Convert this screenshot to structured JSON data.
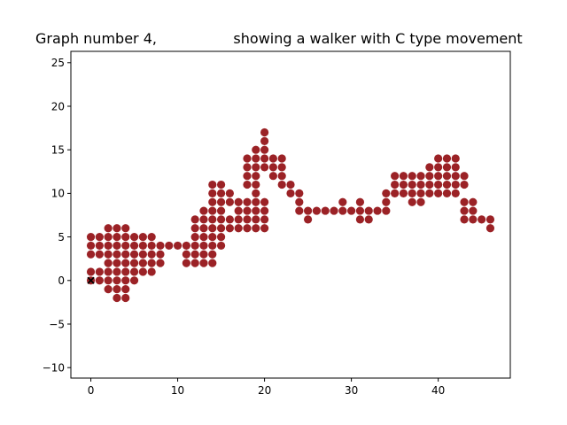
{
  "chart_data": {
    "type": "scatter",
    "title": "Graph number 4,                 showing a walker with C type movement",
    "xlim": [
      -2.3,
      48.3
    ],
    "ylim": [
      -11.2,
      26.3
    ],
    "x_ticks": [
      0,
      10,
      20,
      30,
      40
    ],
    "y_ticks": [
      -10,
      -5,
      0,
      5,
      10,
      15,
      20,
      25
    ],
    "grid": false,
    "colors": {
      "points": "#9b2226",
      "start_marker": "#000000",
      "axis": "#000000"
    },
    "start_marker": {
      "x": 0,
      "y": 0,
      "symbol": "x"
    },
    "points": [
      [
        0,
        5
      ],
      [
        0,
        4
      ],
      [
        0,
        3
      ],
      [
        0,
        1
      ],
      [
        0,
        0
      ],
      [
        1,
        5
      ],
      [
        1,
        4
      ],
      [
        1,
        3
      ],
      [
        1,
        1
      ],
      [
        1,
        0
      ],
      [
        2,
        6
      ],
      [
        2,
        5
      ],
      [
        2,
        4
      ],
      [
        2,
        3
      ],
      [
        2,
        2
      ],
      [
        2,
        1
      ],
      [
        2,
        0
      ],
      [
        2,
        -1
      ],
      [
        3,
        6
      ],
      [
        3,
        5
      ],
      [
        3,
        4
      ],
      [
        3,
        3
      ],
      [
        3,
        2
      ],
      [
        3,
        1
      ],
      [
        3,
        0
      ],
      [
        3,
        -1
      ],
      [
        3,
        -2
      ],
      [
        4,
        6
      ],
      [
        4,
        5
      ],
      [
        4,
        4
      ],
      [
        4,
        3
      ],
      [
        4,
        2
      ],
      [
        4,
        1
      ],
      [
        4,
        0
      ],
      [
        4,
        -1
      ],
      [
        4,
        -2
      ],
      [
        5,
        5
      ],
      [
        5,
        4
      ],
      [
        5,
        3
      ],
      [
        5,
        2
      ],
      [
        5,
        1
      ],
      [
        5,
        0
      ],
      [
        6,
        5
      ],
      [
        6,
        4
      ],
      [
        6,
        3
      ],
      [
        6,
        2
      ],
      [
        6,
        1
      ],
      [
        7,
        5
      ],
      [
        7,
        4
      ],
      [
        7,
        3
      ],
      [
        7,
        2
      ],
      [
        7,
        1
      ],
      [
        8,
        4
      ],
      [
        8,
        3
      ],
      [
        8,
        2
      ],
      [
        9,
        4
      ],
      [
        10,
        4
      ],
      [
        11,
        4
      ],
      [
        11,
        3
      ],
      [
        11,
        2
      ],
      [
        12,
        7
      ],
      [
        12,
        6
      ],
      [
        12,
        5
      ],
      [
        12,
        4
      ],
      [
        12,
        3
      ],
      [
        12,
        2
      ],
      [
        13,
        8
      ],
      [
        13,
        7
      ],
      [
        13,
        6
      ],
      [
        13,
        5
      ],
      [
        13,
        4
      ],
      [
        13,
        3
      ],
      [
        13,
        2
      ],
      [
        14,
        11
      ],
      [
        14,
        10
      ],
      [
        14,
        9
      ],
      [
        14,
        8
      ],
      [
        14,
        7
      ],
      [
        14,
        6
      ],
      [
        14,
        5
      ],
      [
        14,
        4
      ],
      [
        14,
        3
      ],
      [
        14,
        2
      ],
      [
        15,
        11
      ],
      [
        15,
        10
      ],
      [
        15,
        9
      ],
      [
        15,
        8
      ],
      [
        15,
        7
      ],
      [
        15,
        6
      ],
      [
        15,
        5
      ],
      [
        15,
        4
      ],
      [
        16,
        10
      ],
      [
        16,
        9
      ],
      [
        16,
        7
      ],
      [
        16,
        6
      ],
      [
        17,
        9
      ],
      [
        17,
        8
      ],
      [
        17,
        7
      ],
      [
        17,
        6
      ],
      [
        18,
        14
      ],
      [
        18,
        13
      ],
      [
        18,
        12
      ],
      [
        18,
        11
      ],
      [
        18,
        9
      ],
      [
        18,
        8
      ],
      [
        18,
        7
      ],
      [
        18,
        6
      ],
      [
        19,
        15
      ],
      [
        19,
        14
      ],
      [
        19,
        13
      ],
      [
        19,
        12
      ],
      [
        19,
        11
      ],
      [
        19,
        10
      ],
      [
        19,
        9
      ],
      [
        19,
        8
      ],
      [
        19,
        7
      ],
      [
        19,
        6
      ],
      [
        20,
        17
      ],
      [
        20,
        16
      ],
      [
        20,
        15
      ],
      [
        20,
        14
      ],
      [
        20,
        13
      ],
      [
        20,
        9
      ],
      [
        20,
        8
      ],
      [
        20,
        7
      ],
      [
        20,
        6
      ],
      [
        21,
        14
      ],
      [
        21,
        13
      ],
      [
        21,
        12
      ],
      [
        22,
        14
      ],
      [
        22,
        13
      ],
      [
        22,
        12
      ],
      [
        22,
        11
      ],
      [
        23,
        11
      ],
      [
        23,
        10
      ],
      [
        24,
        10
      ],
      [
        24,
        9
      ],
      [
        24,
        8
      ],
      [
        25,
        8
      ],
      [
        25,
        7
      ],
      [
        26,
        8
      ],
      [
        27,
        8
      ],
      [
        28,
        8
      ],
      [
        29,
        9
      ],
      [
        29,
        8
      ],
      [
        30,
        8
      ],
      [
        31,
        9
      ],
      [
        31,
        8
      ],
      [
        31,
        7
      ],
      [
        32,
        8
      ],
      [
        32,
        7
      ],
      [
        33,
        8
      ],
      [
        34,
        10
      ],
      [
        34,
        9
      ],
      [
        34,
        8
      ],
      [
        35,
        12
      ],
      [
        35,
        11
      ],
      [
        35,
        10
      ],
      [
        36,
        12
      ],
      [
        36,
        11
      ],
      [
        36,
        10
      ],
      [
        37,
        12
      ],
      [
        37,
        11
      ],
      [
        37,
        10
      ],
      [
        37,
        9
      ],
      [
        38,
        12
      ],
      [
        38,
        11
      ],
      [
        38,
        10
      ],
      [
        38,
        9
      ],
      [
        39,
        13
      ],
      [
        39,
        12
      ],
      [
        39,
        11
      ],
      [
        39,
        10
      ],
      [
        40,
        14
      ],
      [
        40,
        13
      ],
      [
        40,
        12
      ],
      [
        40,
        11
      ],
      [
        40,
        10
      ],
      [
        41,
        14
      ],
      [
        41,
        13
      ],
      [
        41,
        12
      ],
      [
        41,
        11
      ],
      [
        41,
        10
      ],
      [
        42,
        14
      ],
      [
        42,
        13
      ],
      [
        42,
        12
      ],
      [
        42,
        11
      ],
      [
        42,
        10
      ],
      [
        43,
        12
      ],
      [
        43,
        11
      ],
      [
        43,
        9
      ],
      [
        43,
        8
      ],
      [
        43,
        7
      ],
      [
        44,
        9
      ],
      [
        44,
        8
      ],
      [
        44,
        7
      ],
      [
        45,
        7
      ],
      [
        46,
        7
      ],
      [
        46,
        6
      ]
    ]
  }
}
